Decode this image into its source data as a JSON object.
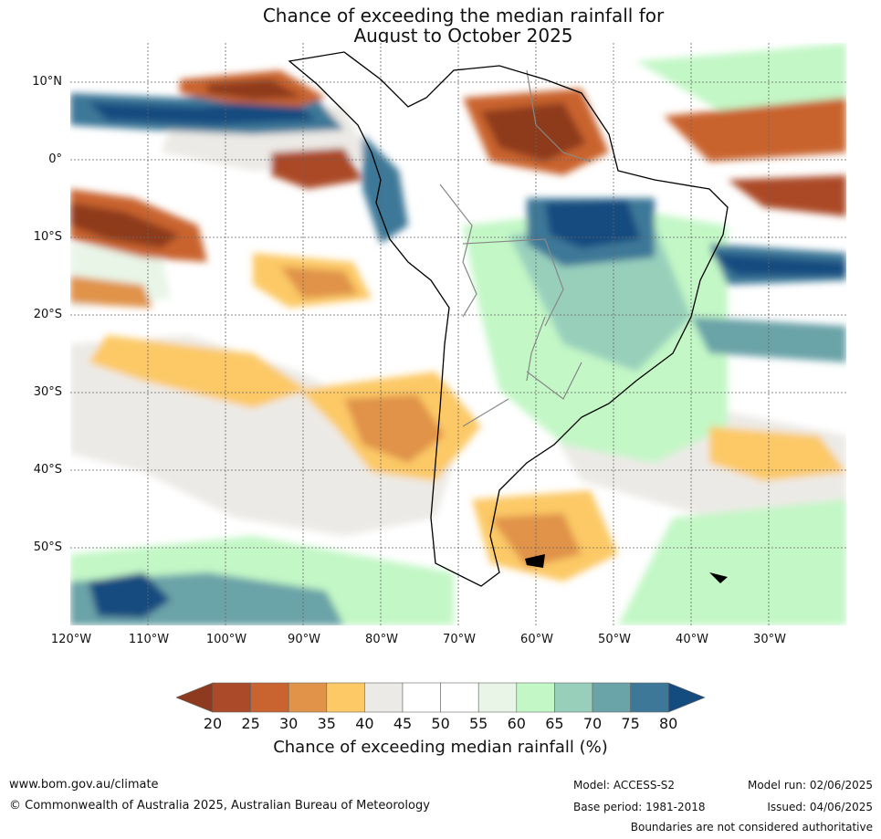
{
  "title": {
    "line1": "Chance of exceeding the median rainfall for",
    "line2": "August to October 2025"
  },
  "map": {
    "lat_labels": [
      "10°N",
      "0°",
      "10°S",
      "20°S",
      "30°S",
      "40°S",
      "50°S"
    ],
    "lon_labels": [
      "120°W",
      "110°W",
      "100°W",
      "90°W",
      "80°W",
      "70°W",
      "60°W",
      "50°W",
      "40°W",
      "30°W"
    ]
  },
  "colorbar": {
    "ticks": [
      "20",
      "25",
      "30",
      "35",
      "40",
      "45",
      "50",
      "55",
      "60",
      "65",
      "70",
      "75",
      "80"
    ],
    "colors": [
      "#8e3a1e",
      "#ab4a28",
      "#c9632f",
      "#e09349",
      "#fcc966",
      "#eceae6",
      "#ffffff",
      "#ffffff",
      "#e8f5e7",
      "#c3f7c6",
      "#97cfbb",
      "#6aa3a8",
      "#3e7898",
      "#144c80"
    ],
    "title": "Chance of exceeding median rainfall (%)"
  },
  "footer": {
    "website": "www.bom.gov.au/climate",
    "copyright": "© Commonwealth of Australia 2025, Australian Bureau of Meteorology",
    "model": "Model: ACCESS-S2",
    "base_period": "Base period: 1981-2018",
    "model_run": "Model run: 02/06/2025",
    "issued": "Issued: 04/06/2025",
    "disclaimer": "Boundaries are not considered authoritative"
  }
}
